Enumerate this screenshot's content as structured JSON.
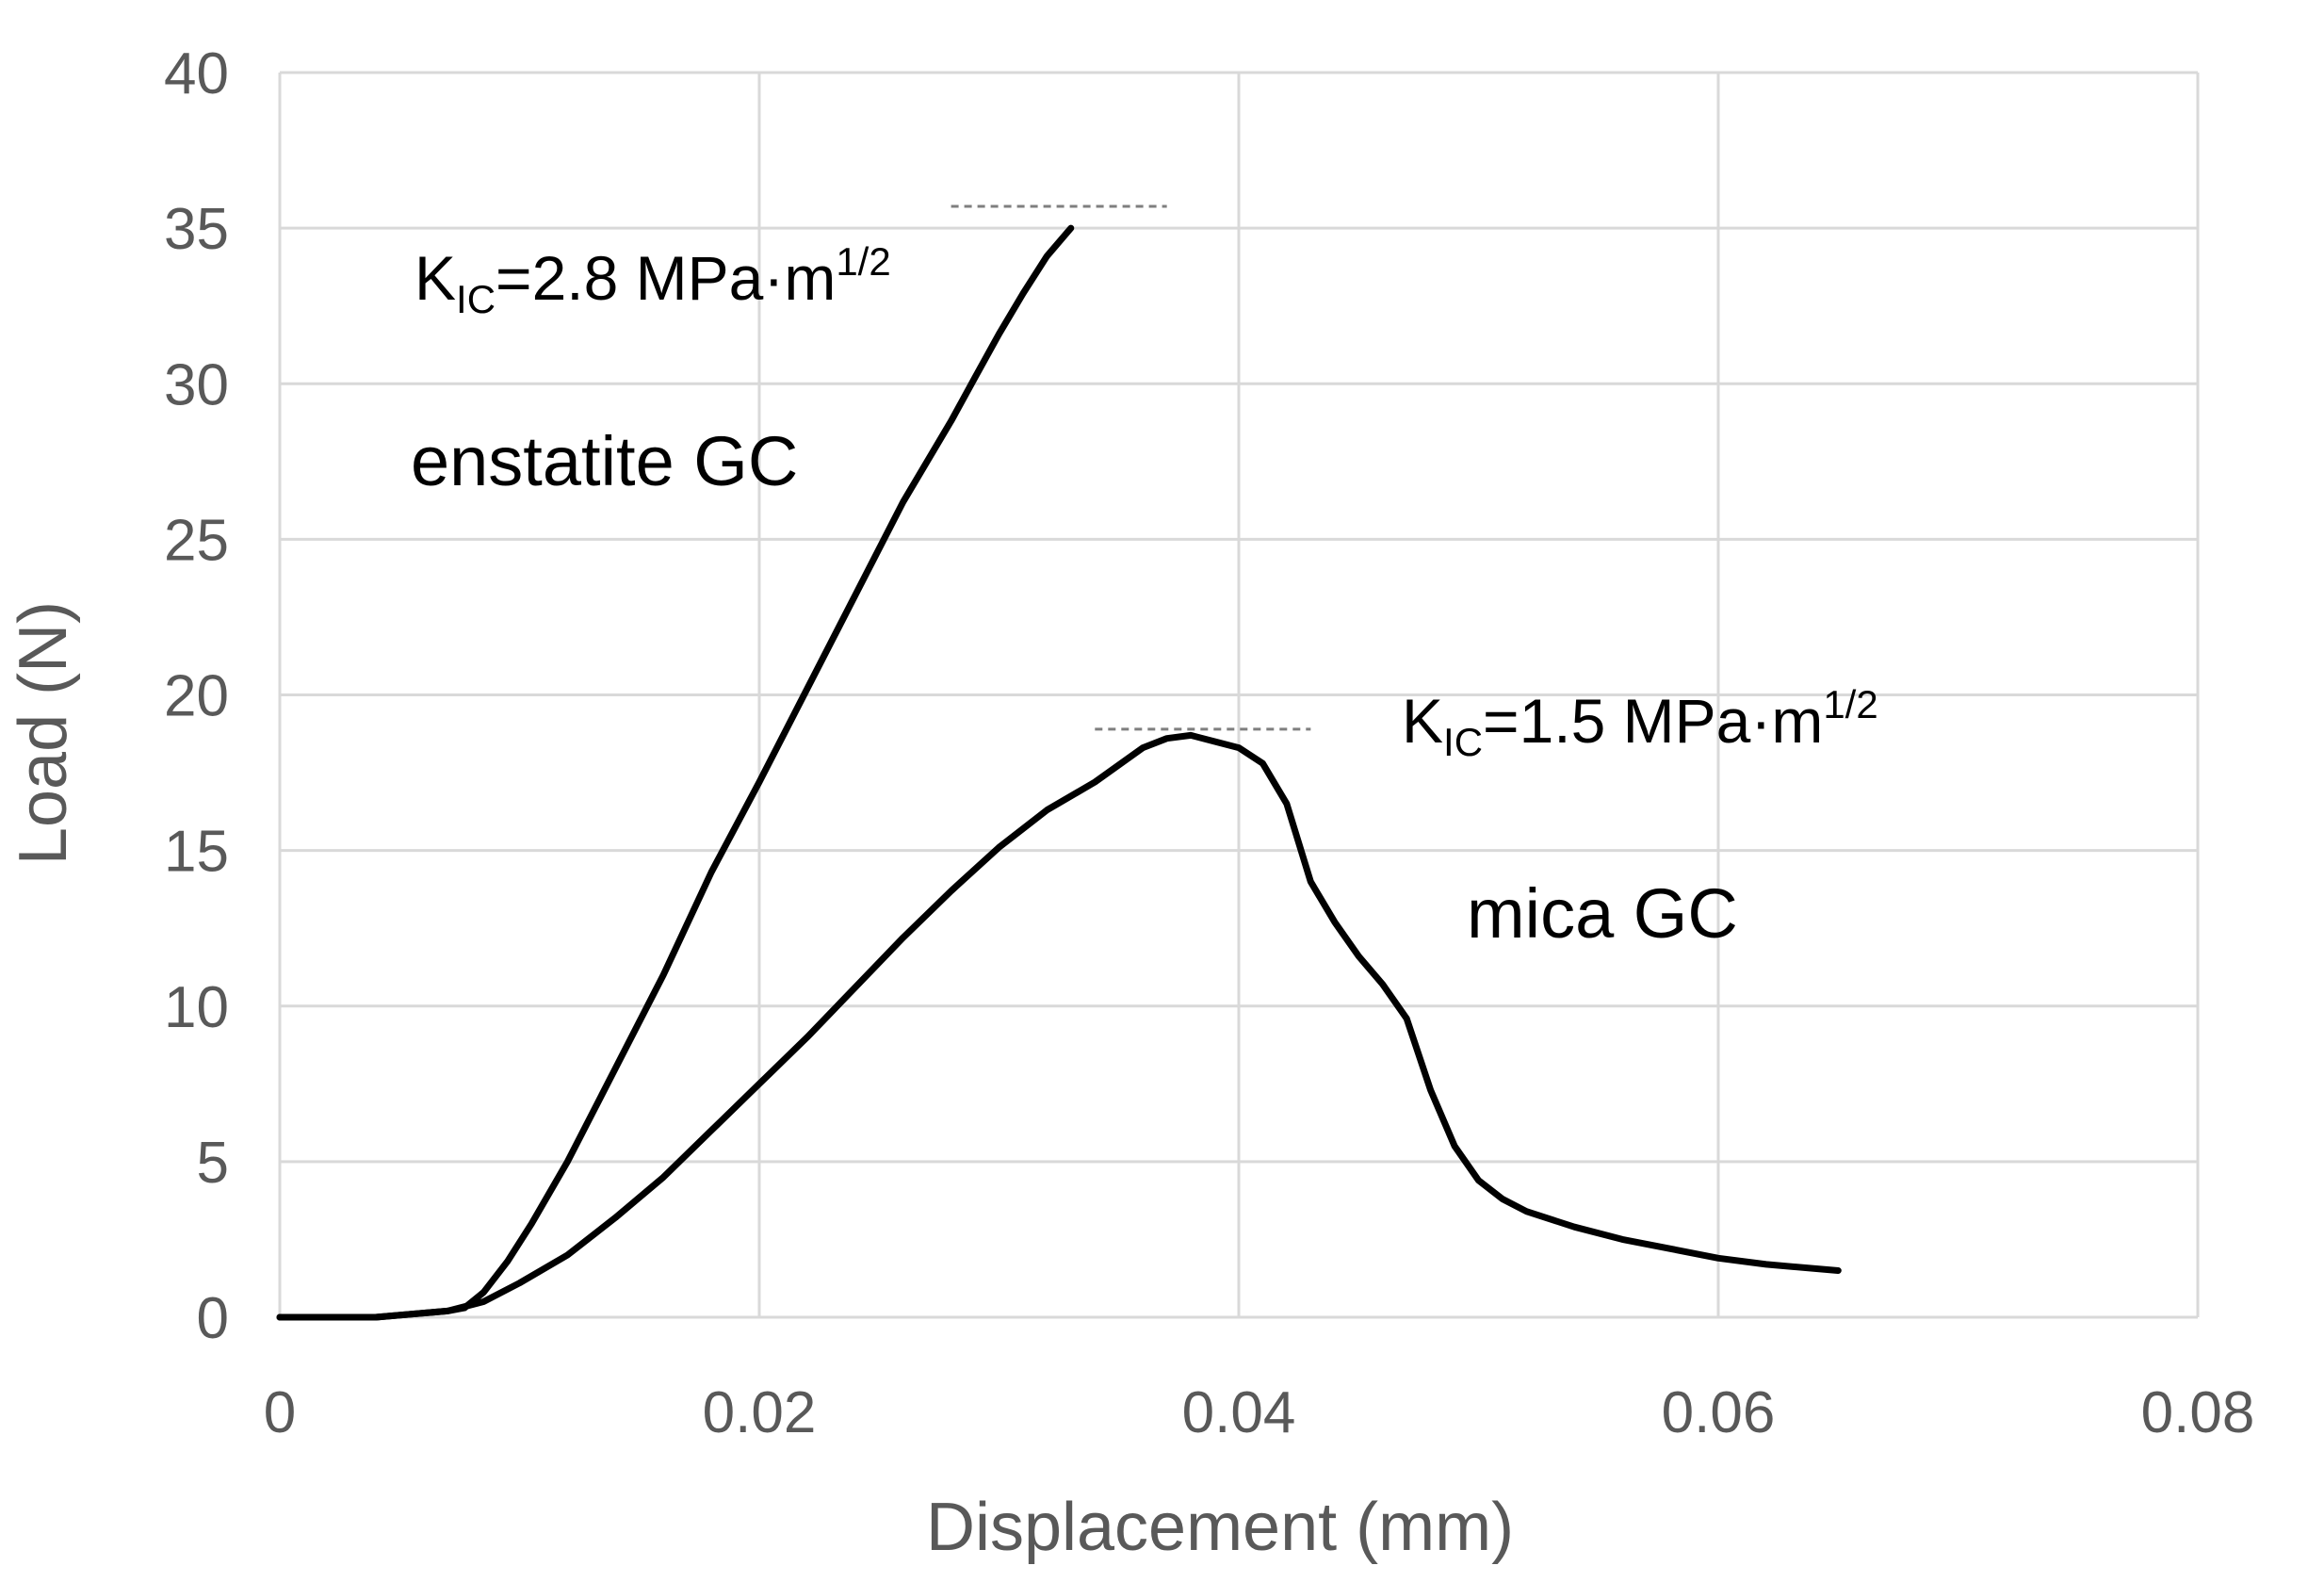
{
  "chart_data": {
    "type": "line",
    "title": "",
    "xlabel": "Displacement (mm)",
    "ylabel": "Load (N)",
    "xlim": [
      0,
      0.08
    ],
    "ylim": [
      0,
      40
    ],
    "xticks": [
      0,
      0.02,
      0.04,
      0.06,
      0.08
    ],
    "xtick_labels": [
      "0",
      "0.02",
      "0.04",
      "0.06",
      "0.08"
    ],
    "yticks": [
      0,
      5,
      10,
      15,
      20,
      25,
      30,
      35,
      40
    ],
    "ytick_labels": [
      "0",
      "5",
      "10",
      "15",
      "20",
      "25",
      "30",
      "35",
      "40"
    ],
    "grid": true,
    "series": [
      {
        "name": "enstatite GC",
        "color": "#000000",
        "x": [
          0,
          0.004,
          0.007,
          0.0077,
          0.0085,
          0.0095,
          0.0105,
          0.012,
          0.014,
          0.016,
          0.018,
          0.02,
          0.022,
          0.024,
          0.026,
          0.028,
          0.029,
          0.03,
          0.031,
          0.032,
          0.033
        ],
        "y": [
          0,
          0,
          0.2,
          0.3,
          0.8,
          1.8,
          3.0,
          5.0,
          8.0,
          11.0,
          14.3,
          17.2,
          20.2,
          23.2,
          26.2,
          28.8,
          30.2,
          31.6,
          32.9,
          34.1,
          35.0
        ]
      },
      {
        "name": "mica GC",
        "color": "#000000",
        "x": [
          0,
          0.004,
          0.007,
          0.0085,
          0.01,
          0.012,
          0.014,
          0.016,
          0.018,
          0.02,
          0.022,
          0.024,
          0.026,
          0.028,
          0.03,
          0.032,
          0.034,
          0.036,
          0.037,
          0.038,
          0.039,
          0.04,
          0.041,
          0.042,
          0.043,
          0.044,
          0.045,
          0.046,
          0.047,
          0.048,
          0.049,
          0.05,
          0.051,
          0.052,
          0.054,
          0.056,
          0.058,
          0.06,
          0.062,
          0.065
        ],
        "y": [
          0,
          0,
          0.2,
          0.5,
          1.1,
          2.0,
          3.2,
          4.5,
          6.0,
          7.5,
          9.0,
          10.6,
          12.2,
          13.7,
          15.1,
          16.3,
          17.2,
          18.3,
          18.6,
          18.7,
          18.5,
          18.3,
          17.8,
          16.5,
          14.0,
          12.7,
          11.6,
          10.7,
          9.6,
          7.3,
          5.5,
          4.4,
          3.8,
          3.4,
          2.9,
          2.5,
          2.2,
          1.9,
          1.7,
          1.5
        ]
      }
    ],
    "annotations": [
      {
        "id": "kic-enstatite",
        "prefix": "K",
        "sub": "IC",
        "main": "=2.8 MPa·m",
        "sup": "1/2"
      },
      {
        "id": "label-enstatite",
        "text": "enstatite GC"
      },
      {
        "id": "kic-mica",
        "prefix": "K",
        "sub": "IC",
        "main": "=1.5 MPa·m",
        "sup": "1/2"
      },
      {
        "id": "label-mica",
        "text": "mica GC"
      }
    ],
    "reference_lines": [
      {
        "name": "enstatite-peak-line",
        "y": 35.7,
        "x_from": 0.028,
        "x_to": 0.037
      },
      {
        "name": "mica-peak-line",
        "y": 18.9,
        "x_from": 0.034,
        "x_to": 0.043
      }
    ]
  }
}
